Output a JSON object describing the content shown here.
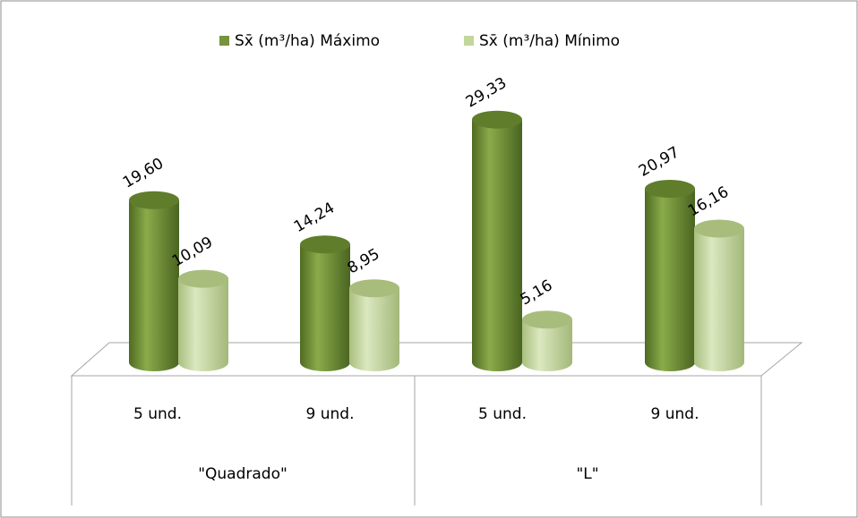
{
  "chart_data": {
    "type": "bar",
    "categories": [
      "5 und.",
      "9 und.",
      "5 und.",
      "9 und."
    ],
    "groups": [
      "\"Quadrado\"",
      "\"L\""
    ],
    "series": [
      {
        "name": "Sx̄ (m³/ha) Máximo",
        "color": "#77933c",
        "values": [
          19.6,
          14.24,
          29.33,
          20.97
        ],
        "value_labels": [
          "19,60",
          "14,24",
          "29,33",
          "20,97"
        ]
      },
      {
        "name": "Sx̄ (m³/ha) Mínimo",
        "color": "#c3d69b",
        "values": [
          10.09,
          8.95,
          5.16,
          16.16
        ],
        "value_labels": [
          "10,09",
          "8,95",
          "5,16",
          "16,16"
        ]
      }
    ]
  }
}
